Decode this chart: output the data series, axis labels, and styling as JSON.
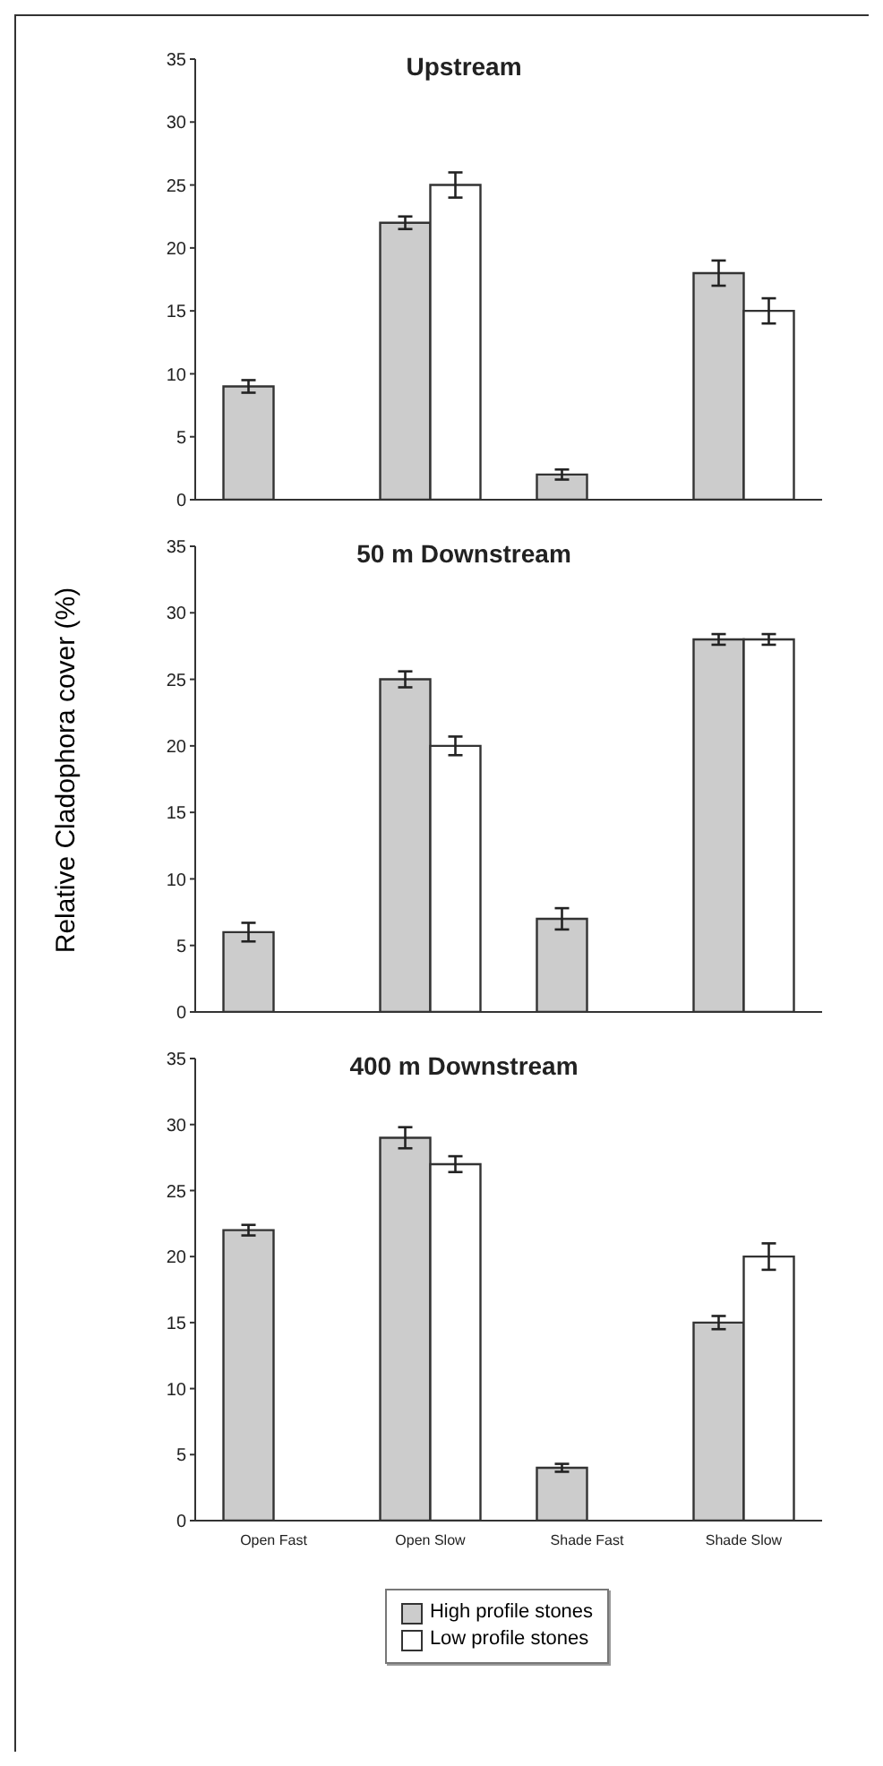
{
  "chart_data": [
    {
      "type": "bar",
      "title": "Upstream",
      "categories": [
        null,
        null,
        null,
        null
      ],
      "ylim": [
        0,
        35
      ],
      "yticks": [
        0,
        5,
        10,
        15,
        20,
        25,
        30,
        35
      ],
      "tick_labels": "y",
      "series": [
        {
          "color": "#cccccc",
          "values": [
            9,
            22,
            2,
            18
          ],
          "errors": [
            0.5,
            0.5,
            0.4,
            1
          ]
        },
        {
          "color": "#ffffff",
          "values": [
            null,
            25,
            null,
            15
          ],
          "errors": [
            null,
            1,
            null,
            1
          ]
        }
      ]
    },
    {
      "type": "bar",
      "title": "50 m Downstream",
      "ylabel": "Relative Cladophora cover (%)",
      "categories": [
        null,
        null,
        null,
        null
      ],
      "ylim": [
        0,
        35
      ],
      "yticks": [
        0,
        5,
        10,
        15,
        20,
        25,
        30,
        35
      ],
      "tick_labels": "y",
      "series": [
        {
          "color": "#cccccc",
          "values": [
            6,
            25,
            7,
            28
          ],
          "errors": [
            0.7,
            0.6,
            0.8,
            0.4
          ]
        },
        {
          "color": "#ffffff",
          "values": [
            null,
            20,
            null,
            28
          ],
          "errors": [
            null,
            0.7,
            null,
            0.4
          ]
        }
      ]
    },
    {
      "type": "bar",
      "title": "400 m Downstream",
      "categories": [
        "Open Fast",
        "Open Slow",
        "Shade Fast",
        "Shade Slow"
      ],
      "ylim": [
        0,
        35
      ],
      "yticks": [
        0,
        5,
        10,
        15,
        20,
        25,
        30,
        35
      ],
      "legend": "bottom",
      "series": [
        {
          "name": "High profile stones",
          "color": "#cccccc",
          "values": [
            22,
            29,
            4,
            15
          ],
          "errors": [
            0.4,
            0.8,
            0.3,
            0.5
          ]
        },
        {
          "name": "Low profile stones",
          "color": "#ffffff",
          "values": [
            null,
            27,
            null,
            20
          ],
          "errors": [
            null,
            0.6,
            null,
            1
          ]
        }
      ]
    }
  ]
}
